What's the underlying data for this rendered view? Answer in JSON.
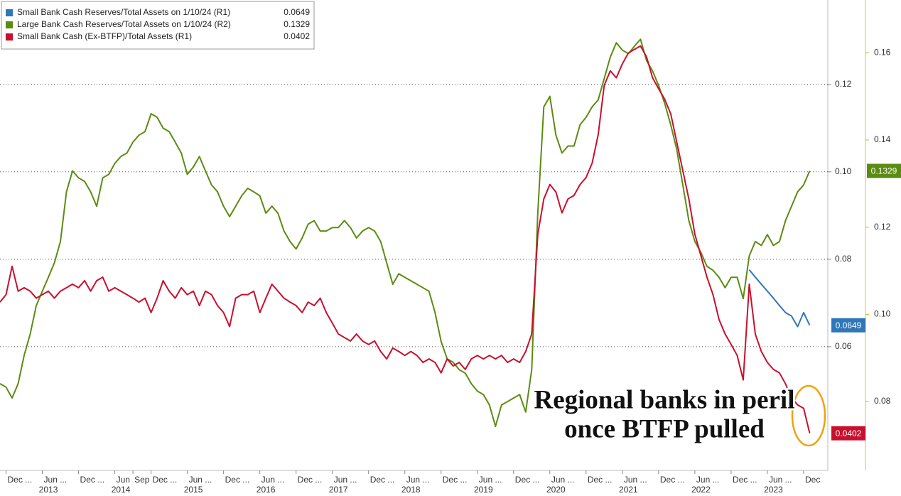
{
  "chart_data": {
    "type": "line",
    "x": [
      "2012-11",
      "2012-12",
      "2013-01",
      "2013-02",
      "2013-03",
      "2013-04",
      "2013-05",
      "2013-06",
      "2013-07",
      "2013-08",
      "2013-09",
      "2013-10",
      "2013-11",
      "2013-12",
      "2014-01",
      "2014-02",
      "2014-03",
      "2014-04",
      "2014-05",
      "2014-06",
      "2014-07",
      "2014-08",
      "2014-09",
      "2014-10",
      "2014-11",
      "2014-12",
      "2015-01",
      "2015-02",
      "2015-03",
      "2015-04",
      "2015-05",
      "2015-06",
      "2015-07",
      "2015-08",
      "2015-09",
      "2015-10",
      "2015-11",
      "2015-12",
      "2016-01",
      "2016-02",
      "2016-03",
      "2016-04",
      "2016-05",
      "2016-06",
      "2016-07",
      "2016-08",
      "2016-09",
      "2016-10",
      "2016-11",
      "2016-12",
      "2017-01",
      "2017-02",
      "2017-03",
      "2017-04",
      "2017-05",
      "2017-06",
      "2017-07",
      "2017-08",
      "2017-09",
      "2017-10",
      "2017-11",
      "2017-12",
      "2018-01",
      "2018-02",
      "2018-03",
      "2018-04",
      "2018-05",
      "2018-06",
      "2018-07",
      "2018-08",
      "2018-09",
      "2018-10",
      "2018-11",
      "2018-12",
      "2019-01",
      "2019-02",
      "2019-03",
      "2019-04",
      "2019-05",
      "2019-06",
      "2019-07",
      "2019-08",
      "2019-09",
      "2019-10",
      "2019-11",
      "2019-12",
      "2020-01",
      "2020-02",
      "2020-03",
      "2020-04",
      "2020-05",
      "2020-06",
      "2020-07",
      "2020-08",
      "2020-09",
      "2020-10",
      "2020-11",
      "2020-12",
      "2021-01",
      "2021-02",
      "2021-03",
      "2021-04",
      "2021-05",
      "2021-06",
      "2021-07",
      "2021-08",
      "2021-09",
      "2021-10",
      "2021-11",
      "2021-12",
      "2022-01",
      "2022-02",
      "2022-03",
      "2022-04",
      "2022-05",
      "2022-06",
      "2022-07",
      "2022-08",
      "2022-09",
      "2022-10",
      "2022-11",
      "2022-12",
      "2023-01",
      "2023-02",
      "2023-03",
      "2023-04",
      "2023-05",
      "2023-06",
      "2023-07",
      "2023-08",
      "2023-09",
      "2023-10",
      "2023-11",
      "2023-12",
      "2024-01"
    ],
    "xlim": [
      "2012-11",
      "2024-04"
    ],
    "xticks": [
      {
        "value": "2012-12",
        "label": "Dec ..."
      },
      {
        "value": "2013-06",
        "label": "Jun ..."
      },
      {
        "value": "2013-12",
        "label": "Dec ..."
      },
      {
        "value": "2014-06",
        "label": "Jun"
      },
      {
        "value": "2014-09",
        "label": "Sep"
      },
      {
        "value": "2014-12",
        "label": "Dec ..."
      },
      {
        "value": "2015-06",
        "label": "Jun ..."
      },
      {
        "value": "2015-12",
        "label": "Dec ..."
      },
      {
        "value": "2016-06",
        "label": "Jun ..."
      },
      {
        "value": "2016-12",
        "label": "Dec ..."
      },
      {
        "value": "2017-06",
        "label": "Jun ..."
      },
      {
        "value": "2017-12",
        "label": "Dec ..."
      },
      {
        "value": "2018-06",
        "label": "Jun ..."
      },
      {
        "value": "2018-12",
        "label": "Dec ..."
      },
      {
        "value": "2019-06",
        "label": "Jun ..."
      },
      {
        "value": "2019-12",
        "label": "Dec ..."
      },
      {
        "value": "2020-06",
        "label": "Jun ..."
      },
      {
        "value": "2020-12",
        "label": "Dec ..."
      },
      {
        "value": "2021-06",
        "label": "Jun ..."
      },
      {
        "value": "2021-12",
        "label": "Dec ..."
      },
      {
        "value": "2022-06",
        "label": "Jun ..."
      },
      {
        "value": "2022-12",
        "label": "Dec ..."
      },
      {
        "value": "2023-06",
        "label": "Jun ..."
      },
      {
        "value": "2023-12",
        "label": "Dec"
      }
    ],
    "xyears": [
      {
        "value": "2013-07",
        "label": "2013"
      },
      {
        "value": "2014-07",
        "label": "2014"
      },
      {
        "value": "2015-07",
        "label": "2015"
      },
      {
        "value": "2016-07",
        "label": "2016"
      },
      {
        "value": "2017-07",
        "label": "2017"
      },
      {
        "value": "2018-07",
        "label": "2018"
      },
      {
        "value": "2019-07",
        "label": "2019"
      },
      {
        "value": "2020-07",
        "label": "2020"
      },
      {
        "value": "2021-07",
        "label": "2021"
      },
      {
        "value": "2022-07",
        "label": "2022"
      },
      {
        "value": "2023-07",
        "label": "2023"
      }
    ],
    "ylim": [
      0.0317,
      0.1393
    ],
    "yticks": [
      {
        "value": 0.06,
        "label": "0.06"
      },
      {
        "value": 0.08,
        "label": "0.08"
      },
      {
        "value": 0.1,
        "label": "0.10"
      },
      {
        "value": 0.12,
        "label": "0.12"
      }
    ],
    "y2lim": [
      0.0642,
      0.1721
    ],
    "y2ticks": [
      {
        "value": 0.08,
        "label": "0.08"
      },
      {
        "value": 0.1,
        "label": "0.10"
      },
      {
        "value": 0.12,
        "label": "0.12"
      },
      {
        "value": 0.14,
        "label": "0.14"
      },
      {
        "value": 0.16,
        "label": "0.16"
      }
    ],
    "grid": true,
    "legend": "top-left",
    "series": [
      {
        "name": "Small Bank Cash Reserves/Total Assets on 1/10/24 (R1)",
        "color": "#2f77b8",
        "axis": "y",
        "values": [
          null,
          null,
          null,
          null,
          null,
          null,
          null,
          null,
          null,
          null,
          null,
          null,
          null,
          null,
          null,
          null,
          null,
          null,
          null,
          null,
          null,
          null,
          null,
          null,
          null,
          null,
          null,
          null,
          null,
          null,
          null,
          null,
          null,
          null,
          null,
          null,
          null,
          null,
          null,
          null,
          null,
          null,
          null,
          null,
          null,
          null,
          null,
          null,
          null,
          null,
          null,
          null,
          null,
          null,
          null,
          null,
          null,
          null,
          null,
          null,
          null,
          null,
          null,
          null,
          null,
          null,
          null,
          null,
          null,
          null,
          null,
          null,
          null,
          null,
          null,
          null,
          null,
          null,
          null,
          null,
          null,
          null,
          null,
          null,
          null,
          null,
          null,
          null,
          null,
          null,
          null,
          null,
          null,
          null,
          null,
          null,
          null,
          null,
          null,
          null,
          null,
          null,
          null,
          null,
          null,
          null,
          null,
          null,
          null,
          null,
          null,
          null,
          null,
          null,
          null,
          null,
          null,
          null,
          null,
          null,
          null,
          null,
          null,
          null,
          0.0776,
          0.0759,
          0.0743,
          0.0727,
          0.0711,
          0.0694,
          0.0678,
          0.067,
          0.0646,
          0.0678,
          0.0649
        ]
      },
      {
        "name": "Large Bank Cash Reserves/Total Assets on 1/10/24 (R2)",
        "color": "#5b8c12",
        "axis": "y2",
        "values": [
          0.0841,
          0.0833,
          0.0808,
          0.0841,
          0.0906,
          0.0955,
          0.102,
          0.1053,
          0.1085,
          0.1118,
          0.1167,
          0.1281,
          0.1329,
          0.1313,
          0.1305,
          0.1281,
          0.1248,
          0.1313,
          0.1321,
          0.1346,
          0.1362,
          0.137,
          0.1395,
          0.1411,
          0.1419,
          0.146,
          0.1452,
          0.1427,
          0.1419,
          0.1395,
          0.137,
          0.1321,
          0.1338,
          0.1362,
          0.1329,
          0.1297,
          0.1281,
          0.1248,
          0.1224,
          0.1248,
          0.1272,
          0.1289,
          0.1281,
          0.1272,
          0.1232,
          0.1248,
          0.1232,
          0.1191,
          0.1167,
          0.115,
          0.1175,
          0.1207,
          0.1215,
          0.1191,
          0.1191,
          0.1199,
          0.1199,
          0.1215,
          0.1199,
          0.1175,
          0.1191,
          0.1199,
          0.1191,
          0.1167,
          0.1118,
          0.1069,
          0.1093,
          0.1085,
          0.1077,
          0.1069,
          0.1061,
          0.1053,
          0.1004,
          0.0938,
          0.0898,
          0.089,
          0.0873,
          0.0865,
          0.0841,
          0.0824,
          0.0816,
          0.0792,
          0.0743,
          0.0792,
          0.08,
          0.0808,
          0.0816,
          0.0776,
          0.0873,
          0.1232,
          0.1476,
          0.15,
          0.1411,
          0.137,
          0.1386,
          0.1386,
          0.1435,
          0.1452,
          0.1476,
          0.1492,
          0.1541,
          0.159,
          0.1623,
          0.1606,
          0.1598,
          0.1615,
          0.1631,
          0.1582,
          0.1558,
          0.1525,
          0.1484,
          0.1435,
          0.1378,
          0.1297,
          0.1215,
          0.1167,
          0.1142,
          0.111,
          0.1101,
          0.1085,
          0.1061,
          0.1085,
          0.1085,
          0.1036,
          0.1134,
          0.1167,
          0.1158,
          0.1183,
          0.1158,
          0.1167,
          0.1215,
          0.1248,
          0.1281,
          0.1297,
          0.1329
        ]
      },
      {
        "name": "Small Bank Cash (Ex-BTFP)/Total Assets (R1)",
        "color": "#c8102e",
        "axis": "y",
        "values": [
          0.0702,
          0.0719,
          0.0784,
          0.0727,
          0.0735,
          0.0727,
          0.0711,
          0.0719,
          0.0727,
          0.0711,
          0.0727,
          0.0735,
          0.0743,
          0.0735,
          0.0751,
          0.0727,
          0.0751,
          0.0759,
          0.0727,
          0.0735,
          0.0727,
          0.0719,
          0.0711,
          0.0702,
          0.0711,
          0.0678,
          0.0711,
          0.0751,
          0.0727,
          0.0711,
          0.0735,
          0.0719,
          0.0727,
          0.0694,
          0.0727,
          0.0719,
          0.0694,
          0.0678,
          0.0646,
          0.0711,
          0.0719,
          0.0719,
          0.0727,
          0.0678,
          0.0711,
          0.0743,
          0.0727,
          0.0711,
          0.0702,
          0.0694,
          0.0678,
          0.0702,
          0.0694,
          0.0711,
          0.0678,
          0.0654,
          0.0629,
          0.0621,
          0.0613,
          0.0629,
          0.0613,
          0.0605,
          0.0613,
          0.0589,
          0.0572,
          0.0597,
          0.0589,
          0.058,
          0.0589,
          0.058,
          0.0564,
          0.0572,
          0.0564,
          0.054,
          0.0572,
          0.0556,
          0.0564,
          0.0548,
          0.0572,
          0.058,
          0.0572,
          0.058,
          0.0572,
          0.058,
          0.0564,
          0.0572,
          0.0564,
          0.0589,
          0.0629,
          0.0857,
          0.0938,
          0.0971,
          0.0954,
          0.0906,
          0.0938,
          0.0946,
          0.0971,
          0.0987,
          0.102,
          0.1085,
          0.1198,
          0.1231,
          0.1215,
          0.1247,
          0.1272,
          0.128,
          0.1288,
          0.1263,
          0.1215,
          0.119,
          0.1166,
          0.1133,
          0.1068,
          0.1003,
          0.0938,
          0.0857,
          0.0808,
          0.0759,
          0.0719,
          0.0662,
          0.0629,
          0.0605,
          0.058,
          0.0524,
          0.0743,
          0.0629,
          0.0589,
          0.0564,
          0.0548,
          0.054,
          0.0515,
          0.0483,
          0.0467,
          0.0459,
          0.0402
        ]
      }
    ],
    "annotations": [
      "Regional banks in peril",
      "once BTFP pulled"
    ]
  }
}
